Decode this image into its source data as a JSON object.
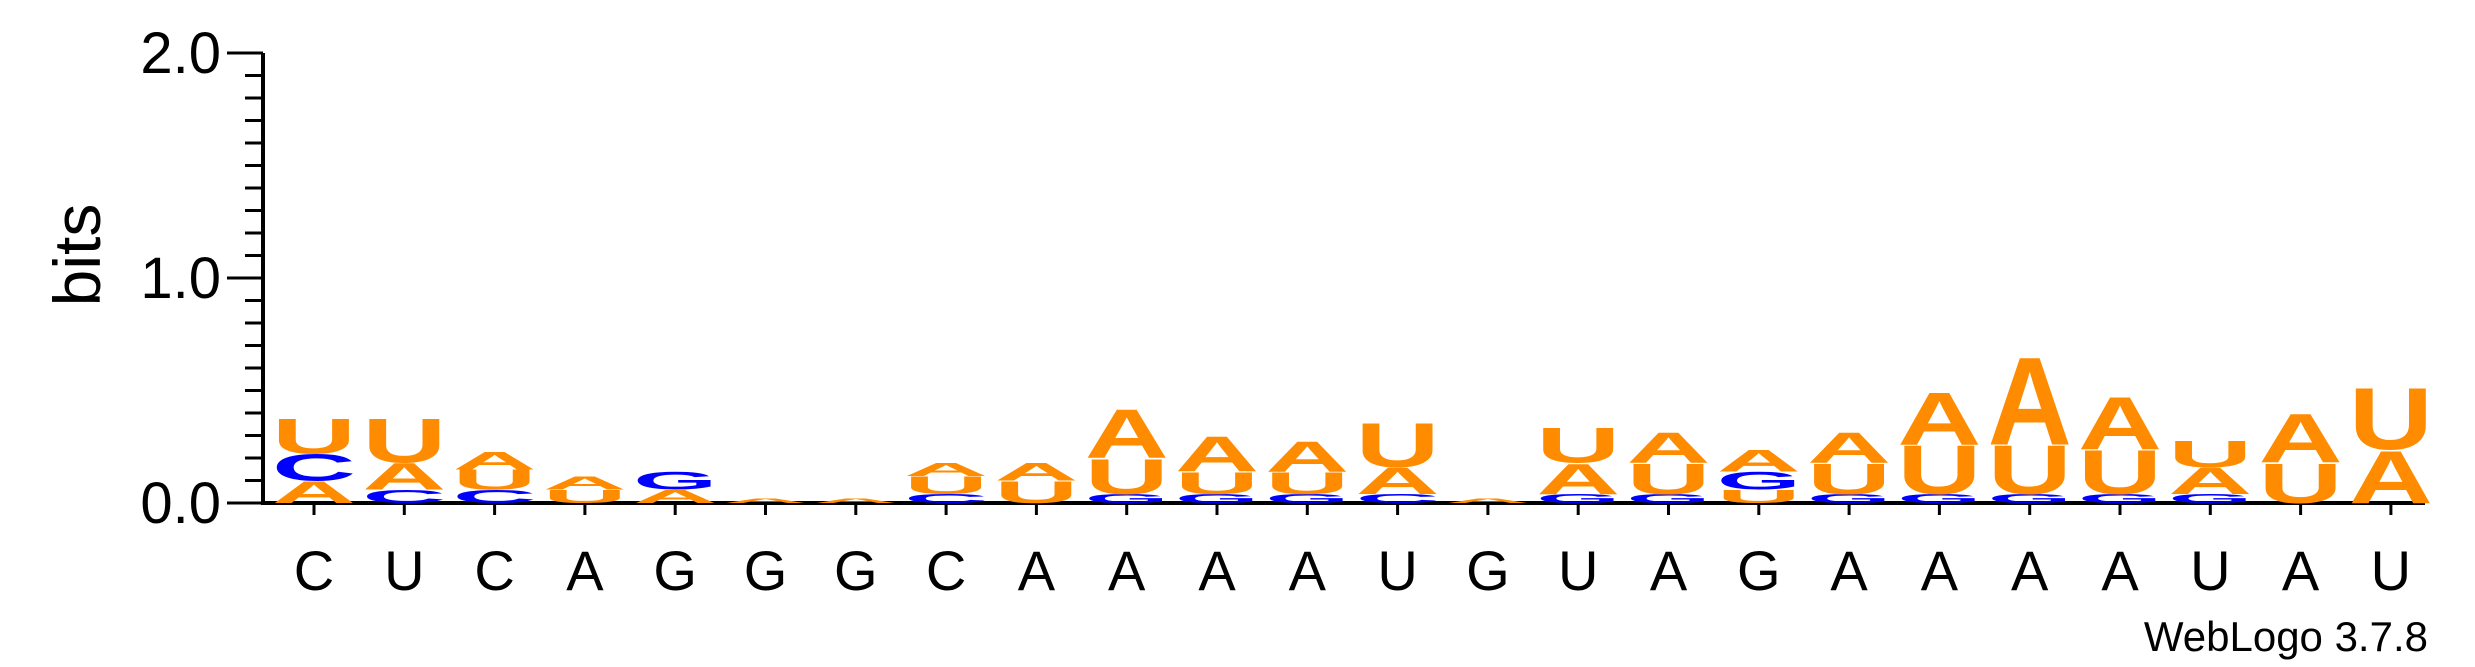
{
  "chart_data": {
    "type": "sequence-logo",
    "ylabel": "bits",
    "ylim": [
      0,
      2.0
    ],
    "yticks": [
      "0.0",
      "1.0",
      "2.0"
    ],
    "positions": [
      {
        "label": "C",
        "letters": [
          {
            "b": "A",
            "h": 0.1
          },
          {
            "b": "C",
            "h": 0.12
          },
          {
            "b": "U",
            "h": 0.16
          }
        ]
      },
      {
        "label": "U",
        "letters": [
          {
            "b": "C",
            "h": 0.06
          },
          {
            "b": "A",
            "h": 0.12
          },
          {
            "b": "U",
            "h": 0.2
          }
        ]
      },
      {
        "label": "C",
        "letters": [
          {
            "b": "C",
            "h": 0.06
          },
          {
            "b": "U",
            "h": 0.09
          },
          {
            "b": "A",
            "h": 0.08
          }
        ]
      },
      {
        "label": "A",
        "letters": [
          {
            "b": "U",
            "h": 0.06
          },
          {
            "b": "A",
            "h": 0.06
          }
        ]
      },
      {
        "label": "G",
        "letters": [
          {
            "b": "A",
            "h": 0.06
          },
          {
            "b": "G",
            "h": 0.08
          }
        ]
      },
      {
        "label": "G",
        "letters": [
          {
            "b": "A",
            "h": 0.02
          }
        ]
      },
      {
        "label": "G",
        "letters": [
          {
            "b": "A",
            "h": 0.02
          }
        ]
      },
      {
        "label": "C",
        "letters": [
          {
            "b": "C",
            "h": 0.04
          },
          {
            "b": "U",
            "h": 0.08
          },
          {
            "b": "A",
            "h": 0.06
          }
        ]
      },
      {
        "label": "A",
        "letters": [
          {
            "b": "U",
            "h": 0.1
          },
          {
            "b": "A",
            "h": 0.08
          }
        ]
      },
      {
        "label": "A",
        "letters": [
          {
            "b": "G",
            "h": 0.04
          },
          {
            "b": "U",
            "h": 0.16
          },
          {
            "b": "A",
            "h": 0.22
          }
        ]
      },
      {
        "label": "A",
        "letters": [
          {
            "b": "G",
            "h": 0.04
          },
          {
            "b": "U",
            "h": 0.1
          },
          {
            "b": "A",
            "h": 0.16
          }
        ]
      },
      {
        "label": "A",
        "letters": [
          {
            "b": "G",
            "h": 0.04
          },
          {
            "b": "U",
            "h": 0.1
          },
          {
            "b": "A",
            "h": 0.14
          }
        ]
      },
      {
        "label": "U",
        "letters": [
          {
            "b": "C",
            "h": 0.04
          },
          {
            "b": "A",
            "h": 0.12
          },
          {
            "b": "U",
            "h": 0.2
          }
        ]
      },
      {
        "label": "G",
        "letters": [
          {
            "b": "A",
            "h": 0.02
          }
        ]
      },
      {
        "label": "U",
        "letters": [
          {
            "b": "G",
            "h": 0.04
          },
          {
            "b": "A",
            "h": 0.14
          },
          {
            "b": "U",
            "h": 0.16
          }
        ]
      },
      {
        "label": "A",
        "letters": [
          {
            "b": "G",
            "h": 0.04
          },
          {
            "b": "U",
            "h": 0.14
          },
          {
            "b": "A",
            "h": 0.14
          }
        ]
      },
      {
        "label": "G",
        "letters": [
          {
            "b": "U",
            "h": 0.06
          },
          {
            "b": "G",
            "h": 0.08
          },
          {
            "b": "A",
            "h": 0.1
          }
        ]
      },
      {
        "label": "A",
        "letters": [
          {
            "b": "G",
            "h": 0.04
          },
          {
            "b": "U",
            "h": 0.14
          },
          {
            "b": "A",
            "h": 0.14
          }
        ]
      },
      {
        "label": "A",
        "letters": [
          {
            "b": "G",
            "h": 0.04
          },
          {
            "b": "U",
            "h": 0.22
          },
          {
            "b": "A",
            "h": 0.24
          }
        ]
      },
      {
        "label": "A",
        "letters": [
          {
            "b": "G",
            "h": 0.04
          },
          {
            "b": "U",
            "h": 0.22
          },
          {
            "b": "A",
            "h": 0.4
          }
        ]
      },
      {
        "label": "A",
        "letters": [
          {
            "b": "G",
            "h": 0.04
          },
          {
            "b": "U",
            "h": 0.2
          },
          {
            "b": "A",
            "h": 0.24
          }
        ]
      },
      {
        "label": "U",
        "letters": [
          {
            "b": "G",
            "h": 0.04
          },
          {
            "b": "A",
            "h": 0.12
          },
          {
            "b": "U",
            "h": 0.12
          }
        ]
      },
      {
        "label": "A",
        "letters": [
          {
            "b": "U",
            "h": 0.18
          },
          {
            "b": "A",
            "h": 0.22
          }
        ]
      },
      {
        "label": "U",
        "letters": [
          {
            "b": "A",
            "h": 0.24
          },
          {
            "b": "U",
            "h": 0.28
          }
        ]
      }
    ],
    "colors": {
      "A": "#ff8c00",
      "U": "#ff8c00",
      "C": "#0000ff",
      "G": "#0000ff",
      "axis": "#000000"
    }
  },
  "credit": "WebLogo 3.7.8"
}
